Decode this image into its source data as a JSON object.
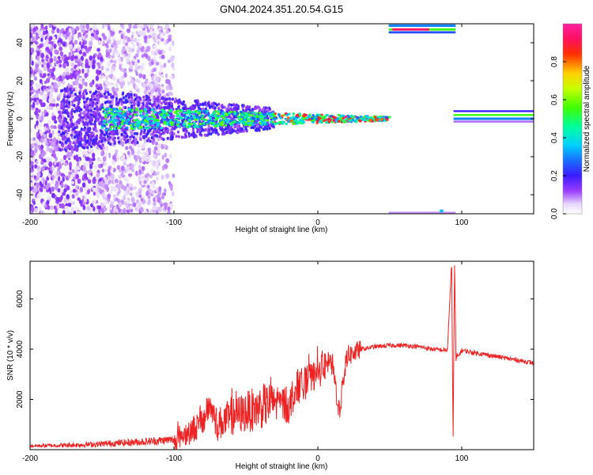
{
  "figure": {
    "title": "GN04.2024.351.20.54.G15"
  },
  "chart_data": [
    {
      "type": "heatmap",
      "xlabel": "Height of straight line (km)",
      "ylabel": "Frequency (Hz)",
      "xlim": [
        -200,
        150
      ],
      "ylim": [
        -50,
        50
      ],
      "xticks": [
        -200,
        -100,
        0,
        100
      ],
      "yticks": [
        -40,
        -20,
        0,
        20,
        40
      ],
      "colorbar": {
        "label": "Normalized spectral amplitude",
        "range": [
          0.0,
          1.0
        ],
        "ticks": [
          0.0,
          0.2,
          0.4,
          0.6,
          0.8
        ],
        "colormap": "rainbow (violet-blue-cyan-green-yellow-red-magenta)"
      },
      "features": [
        {
          "region": "scattered low-amplitude noise",
          "x_range": [
            -200,
            -100
          ],
          "y_range": [
            -50,
            50
          ],
          "amplitude": 0.05
        },
        {
          "region": "main carrier tone band",
          "x_range": [
            -160,
            50
          ],
          "center_freq": 0,
          "amplitude_range": [
            0.1,
            0.9
          ]
        },
        {
          "region": "carrier tone band",
          "x_range": [
            95,
            150
          ],
          "center_freq": 2,
          "amplitude": 0.55
        },
        {
          "region": "aliased band near upper edge",
          "x_range": [
            50,
            95
          ],
          "center_freq": 47,
          "amplitude": 0.95
        },
        {
          "region": "aliased band near lower edge",
          "x_range": [
            50,
            95
          ],
          "center_freq": -49,
          "amplitude": 0.1
        }
      ]
    },
    {
      "type": "line",
      "xlabel": "Height of straight line (km)",
      "ylabel": "SNR (10 * v/v)",
      "xlim": [
        -200,
        150
      ],
      "ylim": [
        0,
        7500
      ],
      "xticks": [
        -200,
        -100,
        0,
        100
      ],
      "yticks": [
        2000,
        4000,
        6000
      ],
      "color": "#ee2222",
      "series": [
        {
          "x": [
            -200,
            -180,
            -160,
            -140,
            -120,
            -100,
            -90,
            -80,
            -75,
            -70,
            -60,
            -50,
            -40,
            -30,
            -20,
            -15,
            -10,
            0,
            5,
            10,
            15,
            20,
            30,
            40,
            50,
            60,
            70,
            80,
            90,
            93,
            94,
            95,
            96,
            100,
            110,
            120,
            130,
            140,
            150
          ],
          "values": [
            150,
            170,
            200,
            260,
            320,
            400,
            700,
            1100,
            1800,
            1000,
            1300,
            1500,
            1700,
            1900,
            1750,
            2500,
            2600,
            3000,
            3300,
            3400,
            1500,
            3700,
            4000,
            4100,
            4150,
            4150,
            4100,
            4000,
            3950,
            7400,
            400,
            7300,
            3600,
            3950,
            3850,
            3750,
            3650,
            3550,
            3450
          ]
        }
      ]
    }
  ]
}
